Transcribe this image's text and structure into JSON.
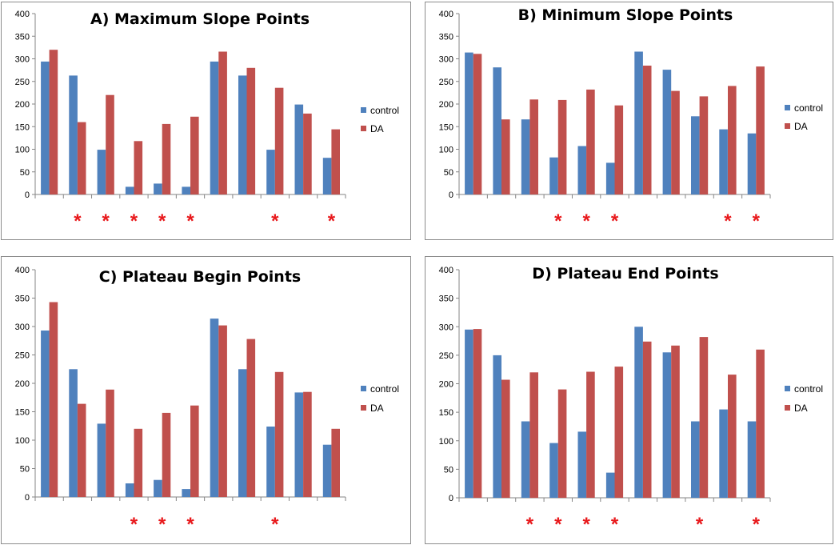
{
  "chart_data": [
    {
      "type": "bar",
      "title": "A) Maximum Slope Points",
      "ylim": [
        0,
        400
      ],
      "yticks": [
        0,
        50,
        100,
        150,
        200,
        250,
        300,
        350,
        400
      ],
      "legend": "right",
      "grid": false,
      "colors": {
        "control": "#4f81bd",
        "DA": "#c0504d",
        "marker": "#e8181b"
      },
      "series": [
        {
          "name": "control",
          "values": [
            294,
            263,
            99,
            17,
            24,
            17,
            294,
            263,
            99,
            199,
            81
          ]
        },
        {
          "name": "DA",
          "values": [
            320,
            160,
            220,
            118,
            156,
            172,
            316,
            280,
            236,
            179,
            144
          ]
        }
      ],
      "significance": [
        "",
        "*",
        "*",
        "*",
        "*",
        "*",
        "",
        "",
        "*",
        "",
        "*"
      ]
    },
    {
      "type": "bar",
      "title": "B) Minimum Slope Points",
      "ylim": [
        0,
        400
      ],
      "yticks": [
        0,
        50,
        100,
        150,
        200,
        250,
        300,
        350,
        400
      ],
      "legend": "right",
      "grid": false,
      "colors": {
        "control": "#4f81bd",
        "DA": "#c0504d",
        "marker": "#e8181b"
      },
      "series": [
        {
          "name": "control",
          "values": [
            314,
            281,
            166,
            82,
            107,
            70,
            316,
            276,
            173,
            144,
            135
          ]
        },
        {
          "name": "DA",
          "values": [
            311,
            166,
            210,
            209,
            232,
            197,
            285,
            229,
            217,
            240,
            283
          ]
        }
      ],
      "significance": [
        "",
        "",
        "",
        "*",
        "*",
        "*",
        "",
        "",
        "",
        "*",
        "*"
      ]
    },
    {
      "type": "bar",
      "title": "C) Plateau Begin Points",
      "ylim": [
        0,
        400
      ],
      "yticks": [
        0,
        50,
        100,
        150,
        200,
        250,
        300,
        350,
        400
      ],
      "legend": "right",
      "grid": false,
      "colors": {
        "control": "#4f81bd",
        "DA": "#c0504d",
        "marker": "#e8181b"
      },
      "series": [
        {
          "name": "control",
          "values": [
            293,
            225,
            129,
            24,
            30,
            14,
            314,
            225,
            124,
            184,
            92
          ]
        },
        {
          "name": "DA",
          "values": [
            343,
            164,
            189,
            120,
            148,
            161,
            302,
            278,
            220,
            185,
            120
          ]
        }
      ],
      "significance": [
        "",
        "",
        "",
        "*",
        "*",
        "*",
        "",
        "",
        "*",
        "",
        ""
      ]
    },
    {
      "type": "bar",
      "title": "D) Plateau End Points",
      "ylim": [
        0,
        400
      ],
      "yticks": [
        0,
        50,
        100,
        150,
        200,
        250,
        300,
        350,
        400
      ],
      "legend": "right",
      "grid": false,
      "colors": {
        "control": "#4f81bd",
        "DA": "#c0504d",
        "marker": "#e8181b"
      },
      "series": [
        {
          "name": "control",
          "values": [
            295,
            250,
            134,
            96,
            116,
            44,
            300,
            255,
            134,
            155,
            134
          ]
        },
        {
          "name": "DA",
          "values": [
            296,
            207,
            220,
            190,
            221,
            230,
            274,
            267,
            282,
            216,
            260
          ]
        }
      ],
      "significance": [
        "",
        "",
        "*",
        "*",
        "*",
        "*",
        "",
        "",
        "*",
        "",
        "*"
      ]
    }
  ]
}
